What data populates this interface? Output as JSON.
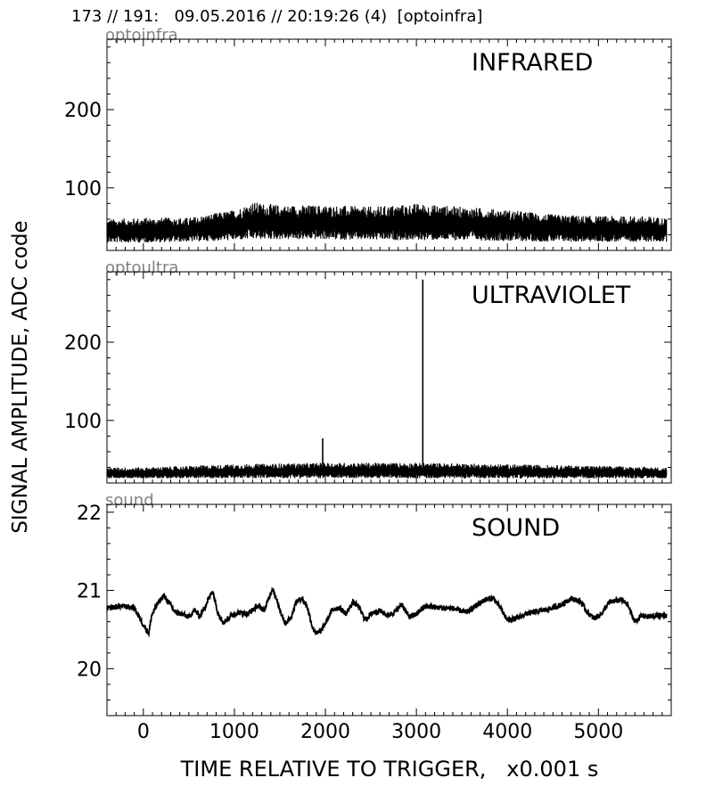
{
  "figure": {
    "title": "173 // 191:   09.05.2016 // 20:19:26 (4)  [optoinfra]",
    "ylabel": "SIGNAL AMPLITUDE,  ADC code",
    "xlabel": "TIME RELATIVE TO TRIGGER,   x0.001 s"
  },
  "chart_data": [
    {
      "type": "line",
      "channel": "optoinfra",
      "title": "INFRARED",
      "xlim": [
        -400,
        5800
      ],
      "ylim": [
        20,
        290
      ],
      "xticks": [
        0,
        1000,
        2000,
        3000,
        4000,
        5000
      ],
      "yticks": [
        100,
        200
      ],
      "ytick_labels": [
        "100",
        "200"
      ],
      "xtick_labels": [],
      "grid": false,
      "line_color": "#000000",
      "noise_envelope": {
        "x": [
          -400,
          0,
          500,
          1000,
          1200,
          1500,
          2000,
          2500,
          3000,
          3500,
          4000,
          4500,
          5000,
          5500,
          5750
        ],
        "low": [
          30,
          30,
          31,
          33,
          34,
          34,
          34,
          33,
          33,
          33,
          32,
          31,
          31,
          31,
          31
        ],
        "high": [
          60,
          62,
          62,
          72,
          82,
          78,
          78,
          76,
          80,
          76,
          72,
          66,
          64,
          64,
          62
        ]
      }
    },
    {
      "type": "line",
      "channel": "optoultra",
      "title": "ULTRAVIOLET",
      "xlim": [
        -400,
        5800
      ],
      "ylim": [
        20,
        290
      ],
      "xticks": [
        0,
        1000,
        2000,
        3000,
        4000,
        5000
      ],
      "yticks": [
        100,
        200
      ],
      "ytick_labels": [
        "100",
        "200"
      ],
      "xtick_labels": [],
      "grid": false,
      "line_color": "#000000",
      "baseline": 30,
      "noise_envelope": {
        "x": [
          -400,
          0,
          1000,
          2000,
          3000,
          4000,
          5000,
          5750
        ],
        "low": [
          26,
          26,
          26,
          26,
          26,
          26,
          26,
          26
        ],
        "high": [
          40,
          40,
          44,
          46,
          46,
          44,
          42,
          40
        ]
      },
      "spikes": [
        {
          "x": 1970,
          "y": 77
        },
        {
          "x": 3070,
          "y": 280
        }
      ]
    },
    {
      "type": "line",
      "channel": "sound",
      "title": "SOUND",
      "xlim": [
        -400,
        5800
      ],
      "ylim": [
        19.4,
        22.1
      ],
      "xticks": [
        0,
        1000,
        2000,
        3000,
        4000,
        5000
      ],
      "yticks": [
        20,
        21,
        22
      ],
      "ytick_labels": [
        "20",
        "21",
        "22"
      ],
      "xtick_labels": [
        "0",
        "1000",
        "2000",
        "3000",
        "4000",
        "5000"
      ],
      "grid": false,
      "line_color": "#000000",
      "noise_amplitude": 0.035,
      "x": [
        -400,
        -250,
        -100,
        -20,
        60,
        90,
        150,
        220,
        280,
        350,
        420,
        500,
        560,
        620,
        680,
        760,
        820,
        880,
        950,
        1050,
        1150,
        1250,
        1330,
        1420,
        1500,
        1560,
        1620,
        1680,
        1740,
        1800,
        1860,
        1900,
        1950,
        2000,
        2080,
        2150,
        2230,
        2300,
        2360,
        2440,
        2520,
        2600,
        2680,
        2760,
        2840,
        2920,
        3000,
        3100,
        3250,
        3400,
        3550,
        3650,
        3750,
        3850,
        3920,
        4000,
        4100,
        4200,
        4320,
        4450,
        4600,
        4700,
        4800,
        4880,
        4950,
        5030,
        5120,
        5250,
        5320,
        5400,
        5480,
        5550,
        5650,
        5750
      ],
      "y": [
        20.77,
        20.8,
        20.78,
        20.6,
        20.45,
        20.68,
        20.82,
        20.93,
        20.85,
        20.72,
        20.7,
        20.66,
        20.75,
        20.67,
        20.8,
        21.0,
        20.72,
        20.58,
        20.67,
        20.72,
        20.7,
        20.8,
        20.75,
        21.03,
        20.75,
        20.58,
        20.65,
        20.85,
        20.9,
        20.8,
        20.52,
        20.45,
        20.48,
        20.58,
        20.76,
        20.78,
        20.7,
        20.85,
        20.8,
        20.62,
        20.72,
        20.74,
        20.68,
        20.72,
        20.82,
        20.66,
        20.7,
        20.8,
        20.78,
        20.77,
        20.72,
        20.8,
        20.88,
        20.9,
        20.78,
        20.62,
        20.64,
        20.7,
        20.73,
        20.76,
        20.82,
        20.9,
        20.86,
        20.72,
        20.64,
        20.7,
        20.85,
        20.88,
        20.82,
        20.6,
        20.68,
        20.66,
        20.68,
        20.68
      ]
    }
  ]
}
